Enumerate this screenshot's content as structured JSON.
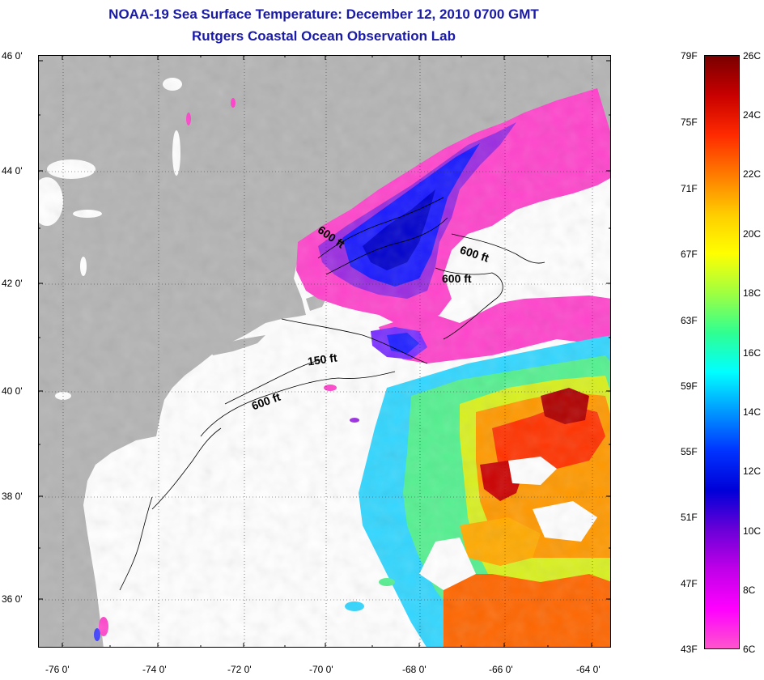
{
  "title": {
    "line1": "NOAA-19 Sea Surface Temperature:  December 12, 2010 0700 GMT",
    "line2": "Rutgers Coastal Ocean Observation Lab"
  },
  "map": {
    "lon_range": [
      -77,
      -63
    ],
    "lat_range": [
      35,
      46
    ],
    "lat_ticks": [
      "46 0'",
      "44 0'",
      "42 0'",
      "40 0'",
      "38 0'",
      "36 0'"
    ],
    "lon_ticks": [
      "-76 0'",
      "-74 0'",
      "-72 0'",
      "-70 0'",
      "-68 0'",
      "-66 0'",
      "-64 0'"
    ],
    "land_color": "#b4b4b4",
    "contours": [
      {
        "label": "600 ft",
        "position": "Gulf of Maine interior"
      },
      {
        "label": "600 ft",
        "position": "northeast of Georges Bank"
      },
      {
        "label": "600 ft",
        "position": "north edge of Georges Bank"
      },
      {
        "label": "150 ft",
        "position": "south of Cape Cod"
      },
      {
        "label": "600 ft",
        "position": "shelf break south of New England"
      }
    ]
  },
  "colorbar": {
    "fahrenheit_labels": [
      "79F",
      "75F",
      "71F",
      "67F",
      "63F",
      "59F",
      "55F",
      "51F",
      "47F",
      "43F"
    ],
    "celsius_labels": [
      "26C",
      "24C",
      "22C",
      "20C",
      "18C",
      "16C",
      "14C",
      "12C",
      "10C",
      "8C",
      "6C"
    ],
    "colors_top_to_bottom": [
      "#7a0000",
      "#c80000",
      "#ff2a00",
      "#ff7a00",
      "#ffcc00",
      "#ffff00",
      "#a0ff40",
      "#30ff90",
      "#00ffff",
      "#0099ff",
      "#0033ff",
      "#0000d8",
      "#6a00d8",
      "#c000e8",
      "#ff00ff",
      "#ff55cc"
    ]
  }
}
